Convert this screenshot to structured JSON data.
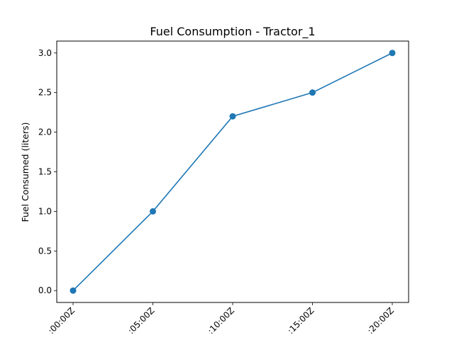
{
  "chart_data": {
    "type": "line",
    "title": "Fuel Consumption - Tractor_1",
    "xlabel": "",
    "ylabel": "Fuel Consumed (liters)",
    "categories": [
      ":00:00Z",
      ":05:00Z",
      ":10:00Z",
      ":15:00Z",
      ":20:00Z"
    ],
    "series": [
      {
        "values": [
          0.0,
          1.0,
          2.2,
          2.5,
          3.0
        ],
        "color": "#1f77b4",
        "marker": "circle"
      }
    ],
    "ylim": [
      -0.15,
      3.15
    ],
    "yticks": [
      "0.0",
      "0.5",
      "1.0",
      "1.5",
      "2.0",
      "2.5",
      "3.0"
    ],
    "grid": false,
    "legend": "none"
  }
}
